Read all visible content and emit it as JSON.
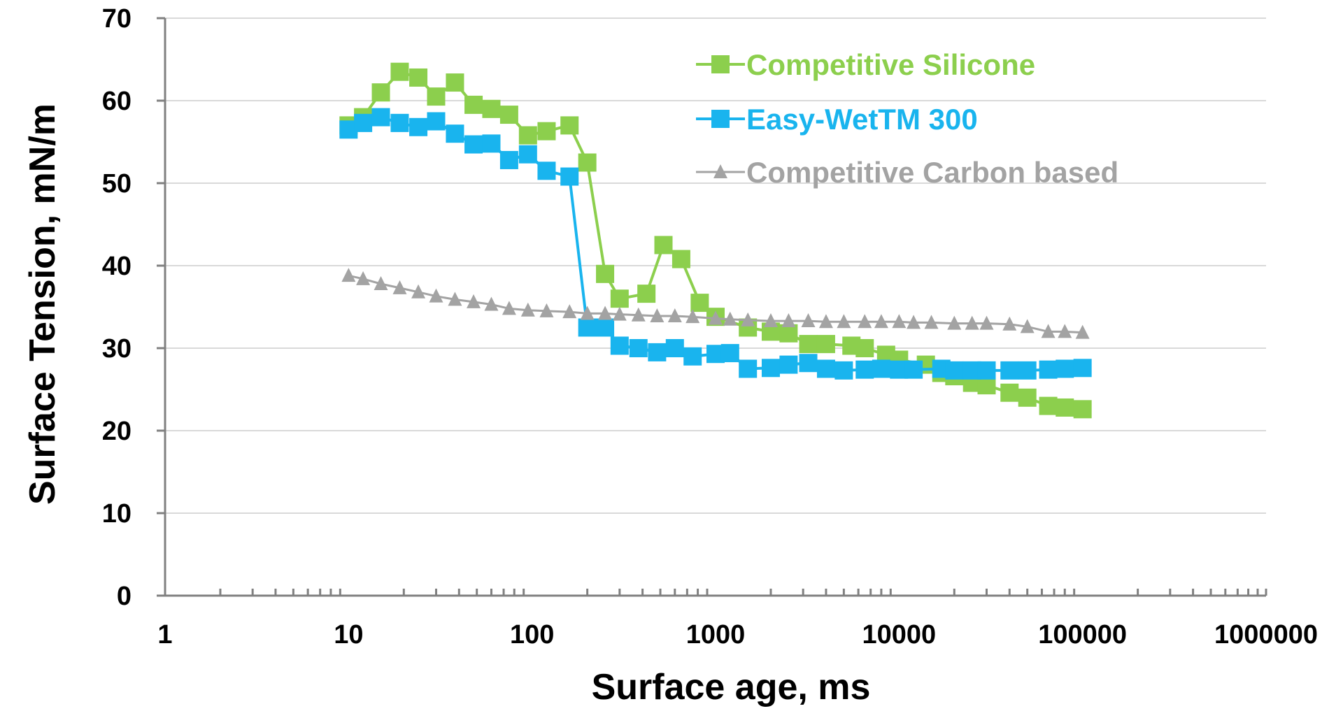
{
  "chart_data": {
    "type": "line",
    "xlabel": "Surface age, ms",
    "ylabel": "Surface Tension, mN/m",
    "x_scale": "log",
    "xlim": [
      1,
      1000000
    ],
    "ylim": [
      0,
      70
    ],
    "x_ticks": [
      "1",
      "10",
      "100",
      "1000",
      "10000",
      "100000",
      "1000000"
    ],
    "y_ticks": [
      "0",
      "10",
      "20",
      "30",
      "40",
      "50",
      "60",
      "70"
    ],
    "grid": "horizontal",
    "legend_position": "top-right",
    "series": [
      {
        "name": "Competitive Silicone",
        "color": "#8ccf4d",
        "marker": "square",
        "x": [
          10,
          12,
          15,
          19,
          24,
          30,
          38,
          48,
          60,
          75,
          95,
          120,
          160,
          200,
          250,
          300,
          420,
          520,
          650,
          820,
          1000,
          1500,
          2000,
          2500,
          3200,
          4000,
          5500,
          6500,
          8500,
          10000,
          14000,
          17000,
          20000,
          25000,
          30000,
          40000,
          50000,
          65000,
          80000,
          100000
        ],
        "y": [
          57.0,
          58.0,
          61.0,
          63.5,
          62.8,
          60.5,
          62.2,
          59.5,
          59.0,
          58.3,
          55.8,
          56.3,
          57.0,
          52.5,
          39.0,
          36.0,
          36.6,
          42.5,
          40.8,
          35.5,
          33.8,
          32.5,
          32.0,
          31.8,
          30.5,
          30.5,
          30.3,
          30.0,
          29.2,
          28.6,
          28.0,
          27.0,
          26.6,
          25.8,
          25.5,
          24.6,
          24.0,
          23.0,
          22.8,
          22.6
        ]
      },
      {
        "name": "Easy-WetTM 300",
        "color": "#19b4ee",
        "marker": "square",
        "x": [
          10,
          12,
          15,
          19,
          24,
          30,
          38,
          48,
          60,
          75,
          95,
          120,
          160,
          200,
          250,
          300,
          380,
          480,
          600,
          750,
          1000,
          1200,
          1500,
          2000,
          2500,
          3200,
          4000,
          5000,
          6500,
          8000,
          10000,
          12000,
          17000,
          20000,
          25000,
          30000,
          40000,
          50000,
          65000,
          80000,
          100000
        ],
        "y": [
          56.5,
          57.3,
          58.0,
          57.3,
          56.8,
          57.5,
          56.0,
          54.7,
          54.8,
          52.8,
          53.5,
          51.5,
          50.8,
          32.5,
          32.5,
          30.3,
          30.0,
          29.5,
          30.0,
          29.0,
          29.3,
          29.4,
          27.5,
          27.6,
          28.0,
          28.2,
          27.5,
          27.3,
          27.4,
          27.5,
          27.4,
          27.4,
          27.5,
          27.3,
          27.3,
          27.3,
          27.3,
          27.3,
          27.4,
          27.5,
          27.6
        ]
      },
      {
        "name": "Competitive Carbon based",
        "color": "#a3a3a3",
        "marker": "triangle",
        "x": [
          10,
          12,
          15,
          19,
          24,
          30,
          38,
          48,
          60,
          75,
          95,
          120,
          160,
          200,
          250,
          300,
          380,
          480,
          600,
          750,
          1000,
          1200,
          1500,
          2000,
          2500,
          3200,
          4000,
          5000,
          6500,
          8000,
          10000,
          12000,
          15000,
          20000,
          25000,
          30000,
          40000,
          50000,
          65000,
          80000,
          100000
        ],
        "y": [
          38.8,
          38.4,
          37.8,
          37.3,
          36.8,
          36.3,
          35.9,
          35.6,
          35.3,
          34.8,
          34.6,
          34.5,
          34.4,
          34.2,
          34.2,
          34.1,
          34.0,
          33.9,
          33.9,
          33.8,
          33.6,
          33.5,
          33.4,
          33.3,
          33.3,
          33.3,
          33.2,
          33.2,
          33.2,
          33.2,
          33.2,
          33.1,
          33.1,
          33.0,
          33.0,
          33.0,
          32.9,
          32.6,
          32.0,
          32.0,
          31.9
        ]
      }
    ]
  }
}
